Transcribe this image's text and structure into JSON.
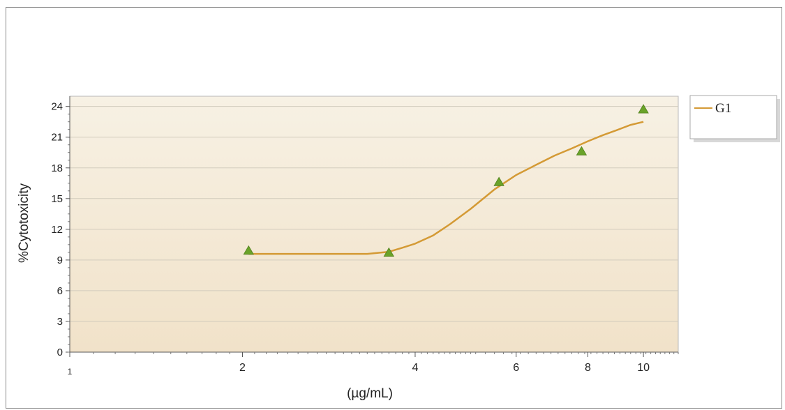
{
  "chart_data": {
    "type": "line",
    "xscale": "log",
    "xlim": [
      1,
      11.5
    ],
    "ylim": [
      0,
      25
    ],
    "xticks": [
      1,
      2,
      4,
      6,
      8,
      10
    ],
    "yticks": [
      0,
      3,
      6,
      9,
      12,
      15,
      18,
      21,
      24
    ],
    "xlabel": "(µg/mL)",
    "ylabel": "%Cytotoxicity",
    "grid": "horizontal",
    "legend": {
      "position": "right-top",
      "entries": [
        "G1"
      ]
    },
    "colors": {
      "plot_bg_top": "#f7f1e4",
      "plot_bg_bottom": "#f1e2c9",
      "line": "#d49a35",
      "marker": "#6aa329"
    },
    "series": [
      {
        "name": "G1",
        "points": {
          "x": [
            2.05,
            3.6,
            5.6,
            7.8,
            10.0
          ],
          "y": [
            9.9,
            9.7,
            16.6,
            19.6,
            23.7
          ]
        },
        "fit": {
          "x": [
            2.05,
            2.5,
            3.0,
            3.3,
            3.6,
            3.8,
            4.0,
            4.3,
            4.6,
            5.0,
            5.5,
            6.0,
            6.5,
            7.0,
            7.5,
            8.0,
            8.5,
            9.0,
            9.5,
            10.0
          ],
          "y": [
            9.6,
            9.6,
            9.6,
            9.6,
            9.8,
            10.2,
            10.6,
            11.4,
            12.5,
            14.0,
            15.9,
            17.3,
            18.3,
            19.2,
            19.9,
            20.6,
            21.2,
            21.7,
            22.2,
            22.5
          ]
        }
      }
    ]
  }
}
